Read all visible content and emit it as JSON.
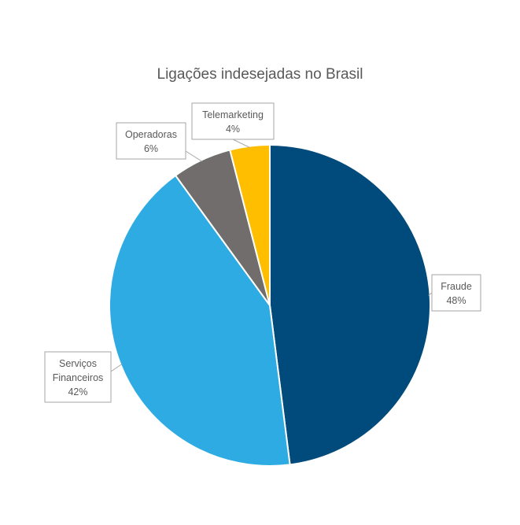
{
  "chart_data": {
    "type": "pie",
    "title": "Ligações indesejadas no Brasil",
    "slices": [
      {
        "label": "Fraude",
        "label_lines": [
          "Fraude"
        ],
        "value": 48,
        "value_label": "48%",
        "color": "#004b7b"
      },
      {
        "label": "Serviços Financeiros",
        "label_lines": [
          "Serviços",
          "Financeiros"
        ],
        "value": 42,
        "value_label": "42%",
        "color": "#2eabe2"
      },
      {
        "label": "Operadoras",
        "label_lines": [
          "Operadoras"
        ],
        "value": 6,
        "value_label": "6%",
        "color": "#706d6c"
      },
      {
        "label": "Telemarketing",
        "label_lines": [
          "Telemarketing"
        ],
        "value": 4,
        "value_label": "4%",
        "color": "#ffbe00"
      }
    ],
    "start_angle_deg": 0,
    "direction": "clockwise",
    "legend": "none",
    "data_labels": "outside-with-leader-lines"
  }
}
